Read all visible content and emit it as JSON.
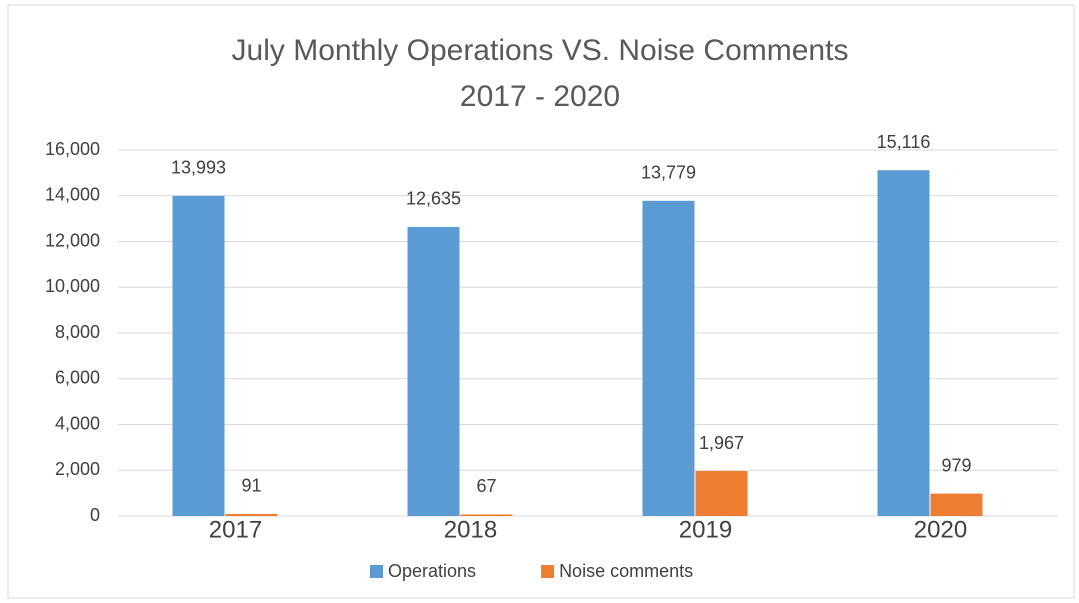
{
  "chart_data": {
    "type": "bar",
    "title": [
      "July Monthly Operations VS. Noise Comments",
      "2017 - 2020"
    ],
    "categories": [
      "2017",
      "2018",
      "2019",
      "2020"
    ],
    "series": [
      {
        "name": "Operations",
        "color": "#5b9bd5",
        "values": [
          13993,
          12635,
          13779,
          15116
        ],
        "value_labels": [
          "13,993",
          "12,635",
          "13,779",
          "15,116"
        ]
      },
      {
        "name": "Noise comments",
        "color": "#ed7d31",
        "values": [
          91,
          67,
          1967,
          979
        ],
        "value_labels": [
          "91",
          "67",
          "1,967",
          "979"
        ]
      }
    ],
    "ylim": [
      0,
      16000
    ],
    "yticks": [
      0,
      {
        "value": 2000,
        "label": "2,000"
      },
      {
        "value": 4000,
        "label": "4,000"
      },
      {
        "value": 6000,
        "label": "6,000"
      },
      {
        "value": 8000,
        "label": "8,000"
      },
      {
        "value": 10000,
        "label": "10,000"
      },
      {
        "value": 12000,
        "label": "12,000"
      },
      {
        "value": 14000,
        "label": "14,000"
      },
      {
        "value": 16000,
        "label": "16,000"
      }
    ],
    "grid": true,
    "legend": "bottom"
  }
}
